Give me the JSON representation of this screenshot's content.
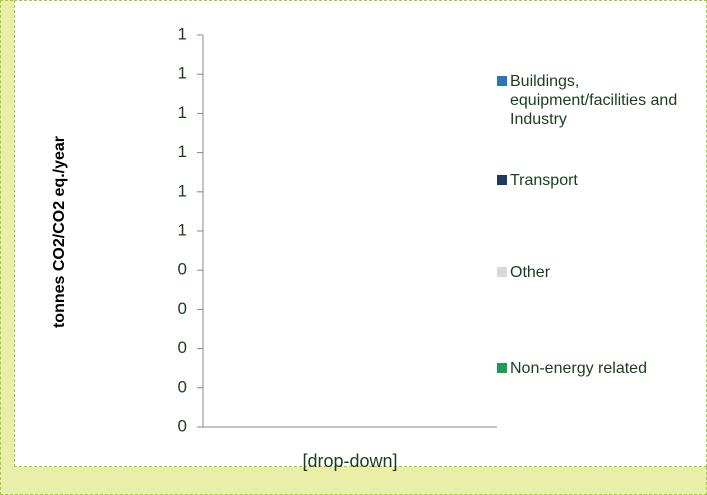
{
  "chart_data": {
    "type": "bar",
    "y_label": "tonnes CO2/CO2 eq./year",
    "categories": [
      "[drop-down]"
    ],
    "series": [
      {
        "name": "Buildings, equipment/facilities and Industry",
        "color": "#2e75b6",
        "values": [
          null
        ]
      },
      {
        "name": "Transport",
        "color": "#1f3864",
        "values": [
          null
        ]
      },
      {
        "name": "Other",
        "color": "#d9d9d9",
        "values": [
          null
        ]
      },
      {
        "name": "Non-energy related",
        "color": "#1e9c52",
        "values": [
          null
        ]
      }
    ],
    "ylim": [
      0,
      1
    ],
    "yticks": [
      0,
      {
        "value": 0.1,
        "label": "0"
      },
      {
        "value": 0.2,
        "label": "0"
      },
      {
        "value": 0.3,
        "label": "0"
      },
      {
        "value": 0.4,
        "label": "0"
      },
      {
        "value": 0.5,
        "label": "1"
      },
      {
        "value": 0.6,
        "label": "1"
      },
      {
        "value": 0.7,
        "label": "1"
      },
      {
        "value": 0.8,
        "label": "1"
      },
      {
        "value": 0.9,
        "label": "1"
      },
      1
    ],
    "grid": false,
    "legend": "right"
  }
}
